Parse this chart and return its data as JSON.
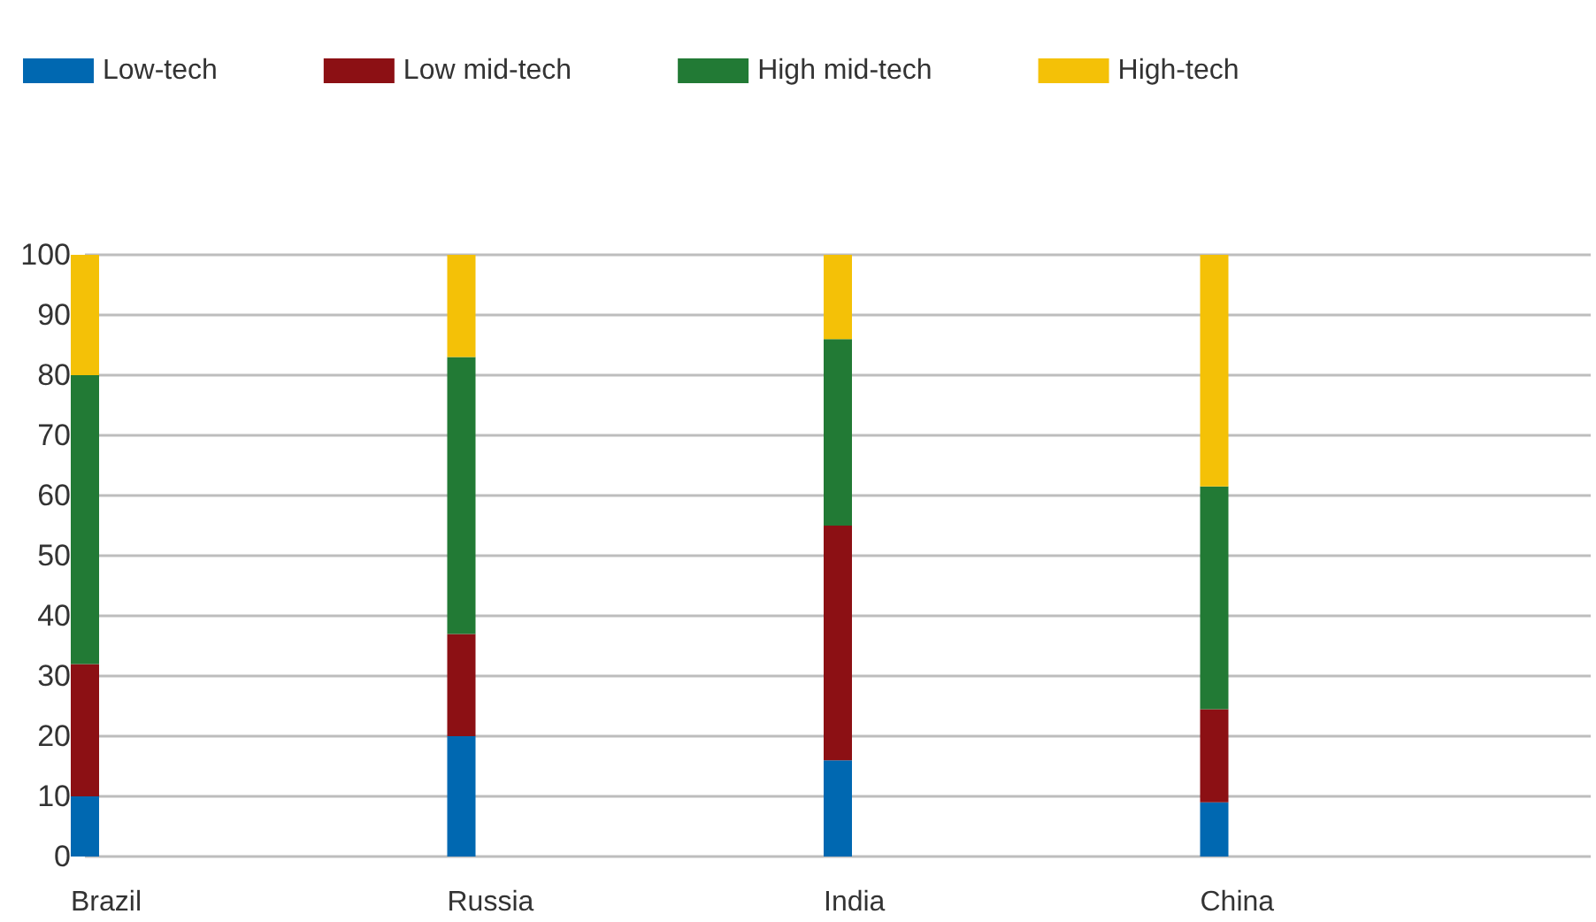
{
  "chart_data": {
    "type": "bar",
    "stacked": true,
    "categories": [
      "Brazil",
      "Russia",
      "India",
      "China"
    ],
    "series": [
      {
        "name": "Low-tech",
        "color": "#0068b1",
        "values": [
          10,
          20,
          16,
          9
        ]
      },
      {
        "name": "Low mid-tech",
        "color": "#8c1014",
        "values": [
          22,
          17,
          39,
          15.5
        ]
      },
      {
        "name": "High mid-tech",
        "color": "#227a35",
        "values": [
          48,
          46,
          31,
          37
        ]
      },
      {
        "name": "High-tech",
        "color": "#f4c107",
        "values": [
          20,
          17,
          14,
          38.5
        ]
      }
    ],
    "ylim": [
      0,
      100
    ],
    "yticks": [
      0,
      10,
      20,
      30,
      40,
      50,
      60,
      70,
      80,
      90,
      100
    ],
    "grid": "y",
    "legend": "top left"
  }
}
